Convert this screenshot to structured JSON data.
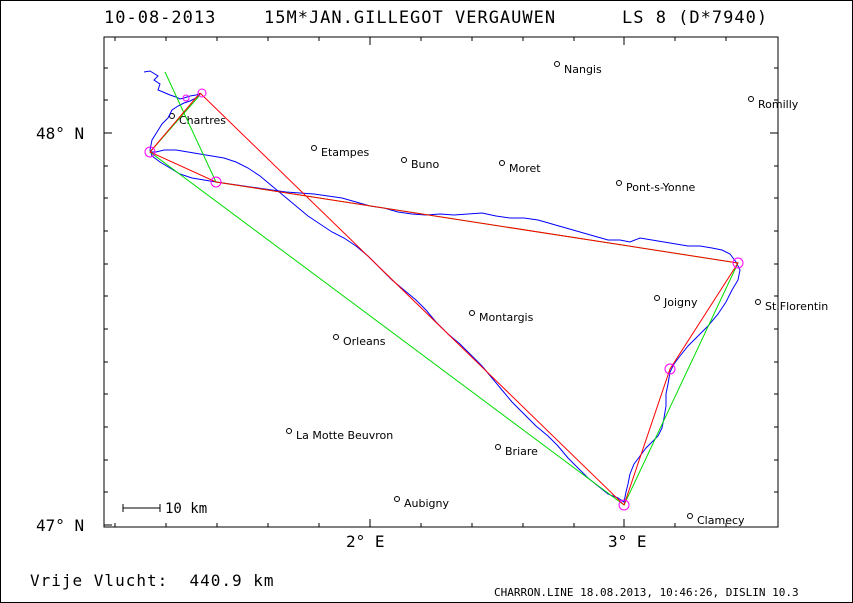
{
  "header": {
    "date": "10-08-2013",
    "pilot": "15M*JAN.GILLEGOT VERGAUWEN",
    "logger": "LS 8 (D*7940)"
  },
  "axes": {
    "lat_top": "48° N",
    "lat_bottom": "47° N",
    "lon_left": "2° E",
    "lon_right": "3° E"
  },
  "scale_label": "10 km",
  "cities": [
    {
      "name": "Nangis"
    },
    {
      "name": "Romilly"
    },
    {
      "name": "Chartres"
    },
    {
      "name": "Etampes"
    },
    {
      "name": "Buno"
    },
    {
      "name": "Moret"
    },
    {
      "name": "Pont-s-Yonne"
    },
    {
      "name": "Joigny"
    },
    {
      "name": "St.Florentin"
    },
    {
      "name": "Montargis"
    },
    {
      "name": "Orleans"
    },
    {
      "name": "La Motte Beuvron"
    },
    {
      "name": "Briare"
    },
    {
      "name": "Aubigny"
    },
    {
      "name": "Clamecy"
    }
  ],
  "footer": {
    "distance": "Vrije Vlucht:  440.9 km",
    "credit": "CHARRON.LINE 18.08.2013, 10:46:26, DISLIN 10.3"
  },
  "colors": {
    "track": "#0000ff",
    "declared": "#00dd00",
    "scored": "#ff0000",
    "turnpoints": "#ff00ff"
  }
}
